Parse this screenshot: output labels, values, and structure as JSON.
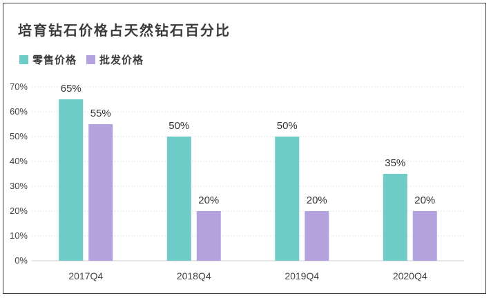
{
  "chart_data": {
    "type": "bar",
    "title": "培育钻石价格占天然钻石百分比",
    "categories": [
      "2017Q4",
      "2018Q4",
      "2019Q4",
      "2020Q4"
    ],
    "series": [
      {
        "name": "零售价格",
        "color": "#6ecbc7",
        "values": [
          65,
          50,
          50,
          35
        ]
      },
      {
        "name": "批发价格",
        "color": "#b3a2dd",
        "values": [
          55,
          20,
          20,
          20
        ]
      }
    ],
    "ylim": [
      0,
      70
    ],
    "yticks": [
      "0%",
      "10%",
      "20%",
      "30%",
      "40%",
      "50%",
      "60%",
      "70%"
    ],
    "value_suffix": "%",
    "grid": true,
    "legend_position": "top-left"
  }
}
